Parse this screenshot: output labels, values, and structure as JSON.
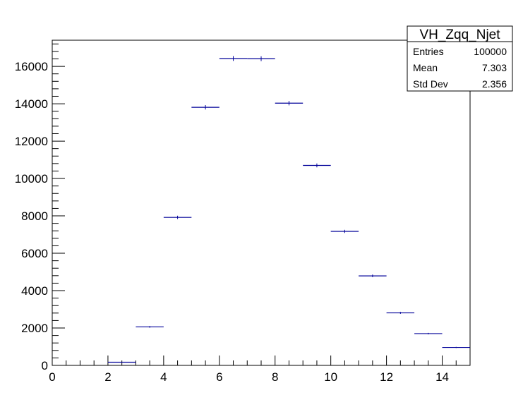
{
  "chart_data": {
    "type": "histogram",
    "x": [
      2.5,
      3.5,
      4.5,
      5.5,
      6.5,
      7.5,
      8.5,
      9.5,
      10.5,
      11.5,
      12.5,
      13.5,
      14.5
    ],
    "bin_width": 1,
    "values": [
      170,
      2060,
      7920,
      13810,
      16420,
      16410,
      14030,
      10700,
      7170,
      4790,
      2810,
      1700,
      960
    ],
    "xlim": [
      0,
      15
    ],
    "ylim": [
      0,
      17400
    ],
    "x_ticks": [
      "0",
      "2",
      "4",
      "6",
      "8",
      "10",
      "12",
      "14"
    ],
    "y_ticks": [
      "0",
      "2000",
      "4000",
      "6000",
      "8000",
      "10000",
      "12000",
      "14000",
      "16000"
    ],
    "series_color": "#000099",
    "grid": false,
    "stats_box": {
      "title": "VH_Zqq_Njet",
      "rows": [
        {
          "label": "Entries",
          "value": "100000"
        },
        {
          "label": "Mean",
          "value": "7.303"
        },
        {
          "label": "Std Dev",
          "value": "2.356"
        }
      ],
      "placement": "top-right"
    }
  }
}
